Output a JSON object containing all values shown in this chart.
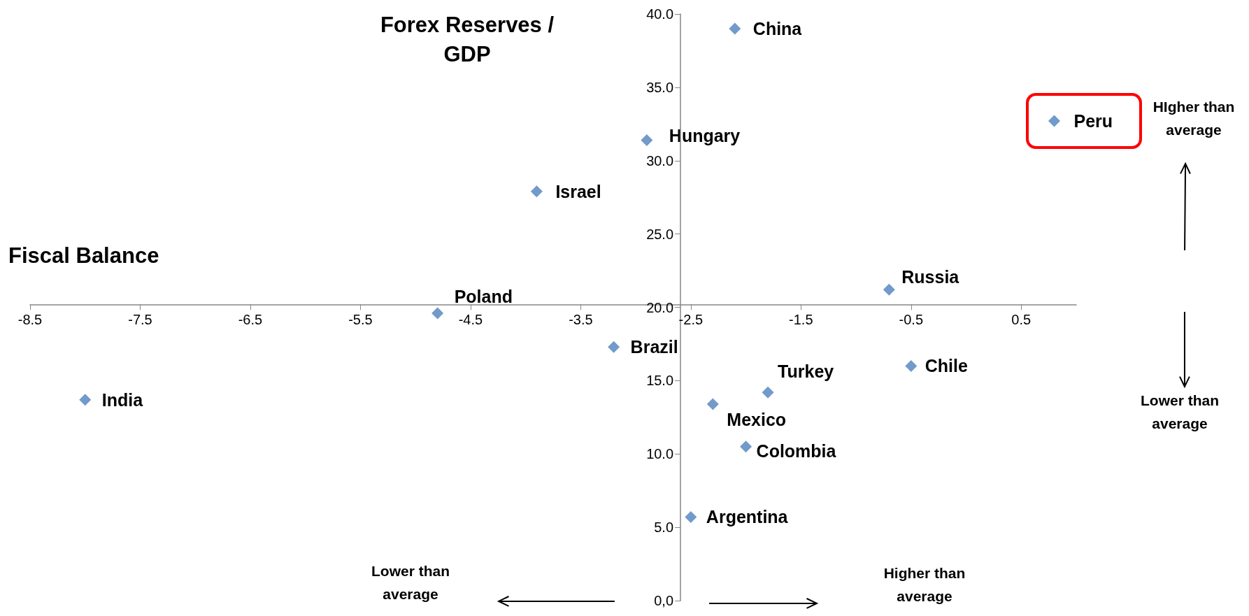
{
  "chart_data": {
    "type": "scatter",
    "xlabel": "Fiscal Balance",
    "ylabel": "Forex Reserves / GDP",
    "x": [
      -2.1,
      -2.9,
      -3.9,
      -4.8,
      -0.7,
      -3.2,
      -0.5,
      -1.8,
      -8.0,
      -2.3,
      -2.0,
      -2.5,
      0.8
    ],
    "values": [
      39.0,
      31.4,
      27.9,
      19.6,
      21.2,
      17.3,
      16.0,
      14.2,
      13.7,
      13.4,
      10.5,
      5.7,
      32.7
    ],
    "color": "#4f81bd",
    "marker": "diamond",
    "xlim": [
      -8.5,
      1.0
    ],
    "xticks": [
      -8.5,
      -7.5,
      -6.5,
      -5.5,
      -4.5,
      -3.5,
      -2.5,
      -1.5,
      -0.5,
      0.5
    ],
    "ylim": [
      0,
      40
    ],
    "yticks": [
      {
        "value": 0,
        "label": "0,0"
      },
      {
        "value": 5,
        "label": "5.0"
      },
      {
        "value": 10,
        "label": "10.0"
      },
      {
        "value": 15,
        "label": "15.0"
      },
      {
        "value": 20,
        "label": "20.0"
      },
      {
        "value": 25,
        "label": "25.0"
      },
      {
        "value": 30,
        "label": "30.0"
      },
      {
        "value": 35,
        "label": "35.0"
      },
      {
        "value": 40,
        "label": "40.0"
      }
    ],
    "annotations": [
      {
        "text": "China",
        "x": -2.1,
        "y": 39.0
      },
      {
        "text": "Hungary",
        "x": -2.9,
        "y": 31.4
      },
      {
        "text": "Israel",
        "x": -3.9,
        "y": 27.9
      },
      {
        "text": "Poland",
        "x": -4.8,
        "y": 19.6
      },
      {
        "text": "Russia",
        "x": -0.7,
        "y": 21.2
      },
      {
        "text": "Brazil",
        "x": -3.2,
        "y": 17.3
      },
      {
        "text": "Chile",
        "x": -0.5,
        "y": 16.0
      },
      {
        "text": "Turkey",
        "x": -1.8,
        "y": 14.2
      },
      {
        "text": "India",
        "x": -8.0,
        "y": 13.7
      },
      {
        "text": "Mexico",
        "x": -2.3,
        "y": 13.4
      },
      {
        "text": "Colombia",
        "x": -2.0,
        "y": 10.5
      },
      {
        "text": "Argentina",
        "x": -2.5,
        "y": 5.7
      },
      {
        "text": "Peru",
        "x": 0.8,
        "y": 32.7
      },
      "Lower than average",
      "Higher than average",
      "HIgher than average",
      "Lower than average"
    ]
  }
}
